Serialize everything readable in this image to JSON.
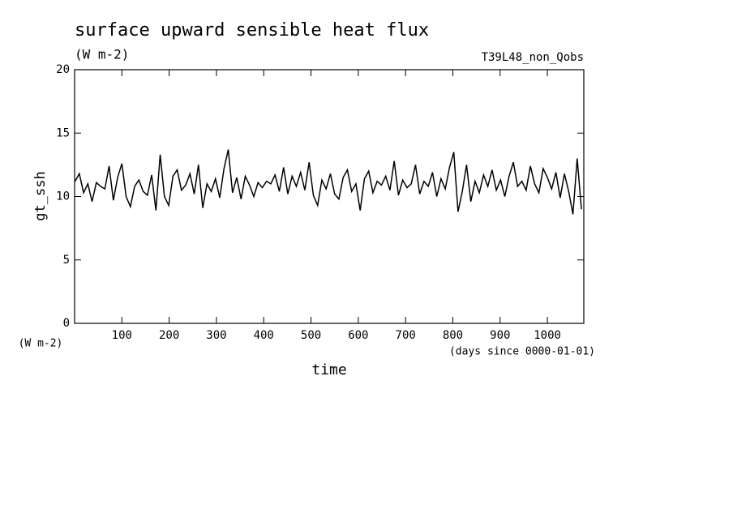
{
  "chart_data": {
    "type": "line",
    "title": "surface upward sensible heat flux",
    "subtitle": "(W m-2)",
    "annotation": "T39L48_non_Qobs",
    "y_label": "gt_ssh",
    "y_units": "(W m-2)",
    "x_label": "time",
    "x_units": "(days since 0000-01-01)",
    "x": [
      1,
      10,
      19,
      28,
      37,
      46,
      55,
      64,
      73,
      82,
      91,
      100,
      109,
      118,
      127,
      136,
      145,
      154,
      163,
      172,
      181,
      190,
      199,
      208,
      217,
      226,
      235,
      244,
      253,
      262,
      271,
      280,
      289,
      298,
      307,
      316,
      325,
      334,
      343,
      352,
      361,
      370,
      379,
      388,
      397,
      406,
      415,
      424,
      433,
      442,
      451,
      460,
      469,
      478,
      487,
      496,
      505,
      514,
      523,
      532,
      541,
      550,
      559,
      568,
      577,
      586,
      595,
      604,
      613,
      622,
      631,
      640,
      649,
      658,
      667,
      676,
      685,
      694,
      703,
      712,
      721,
      730,
      739,
      748,
      757,
      766,
      775,
      784,
      793,
      802,
      811,
      820,
      829,
      838,
      847,
      856,
      865,
      874,
      883,
      892,
      901,
      910,
      919,
      928,
      937,
      946,
      955,
      964,
      973,
      982,
      991,
      1000,
      1009,
      1018,
      1027,
      1036,
      1045,
      1054,
      1063,
      1072
    ],
    "series": [
      {
        "name": "gt_ssh",
        "color": "#000000",
        "values": [
          11.2,
          11.8,
          10.3,
          11.0,
          9.6,
          11.1,
          10.8,
          10.6,
          12.4,
          9.7,
          11.5,
          12.6,
          10.0,
          9.2,
          10.8,
          11.3,
          10.4,
          10.1,
          11.7,
          8.9,
          13.3,
          10.0,
          9.3,
          11.6,
          12.1,
          10.5,
          10.9,
          11.8,
          10.2,
          12.5,
          9.1,
          11.0,
          10.4,
          11.4,
          9.9,
          12.2,
          13.7,
          10.3,
          11.5,
          9.8,
          11.6,
          10.9,
          10.0,
          11.1,
          10.7,
          11.2,
          11.0,
          11.7,
          10.4,
          12.3,
          10.2,
          11.6,
          10.8,
          11.9,
          10.5,
          12.7,
          10.1,
          9.3,
          11.3,
          10.6,
          11.8,
          10.2,
          9.8,
          11.5,
          12.1,
          10.4,
          11.0,
          8.9,
          11.4,
          12.0,
          10.3,
          11.2,
          10.9,
          11.6,
          10.5,
          12.8,
          10.1,
          11.3,
          10.7,
          11.0,
          12.5,
          10.2,
          11.2,
          10.8,
          11.9,
          10.0,
          11.4,
          10.6,
          12.3,
          13.5,
          8.8,
          10.4,
          12.5,
          9.6,
          11.2,
          10.3,
          11.7,
          10.8,
          12.1,
          10.5,
          11.3,
          10.0,
          11.6,
          12.7,
          10.8,
          11.2,
          10.5,
          12.4,
          11.0,
          10.3,
          12.2,
          11.5,
          10.6,
          11.9,
          9.9,
          11.8,
          10.4,
          8.6,
          13.0,
          9.0
        ]
      }
    ],
    "xlim": [
      0,
      1077
    ],
    "ylim": [
      0,
      20
    ],
    "xticks": [
      100,
      200,
      300,
      400,
      500,
      600,
      700,
      800,
      900,
      1000
    ],
    "yticks": [
      0,
      5,
      10,
      15,
      20
    ]
  }
}
